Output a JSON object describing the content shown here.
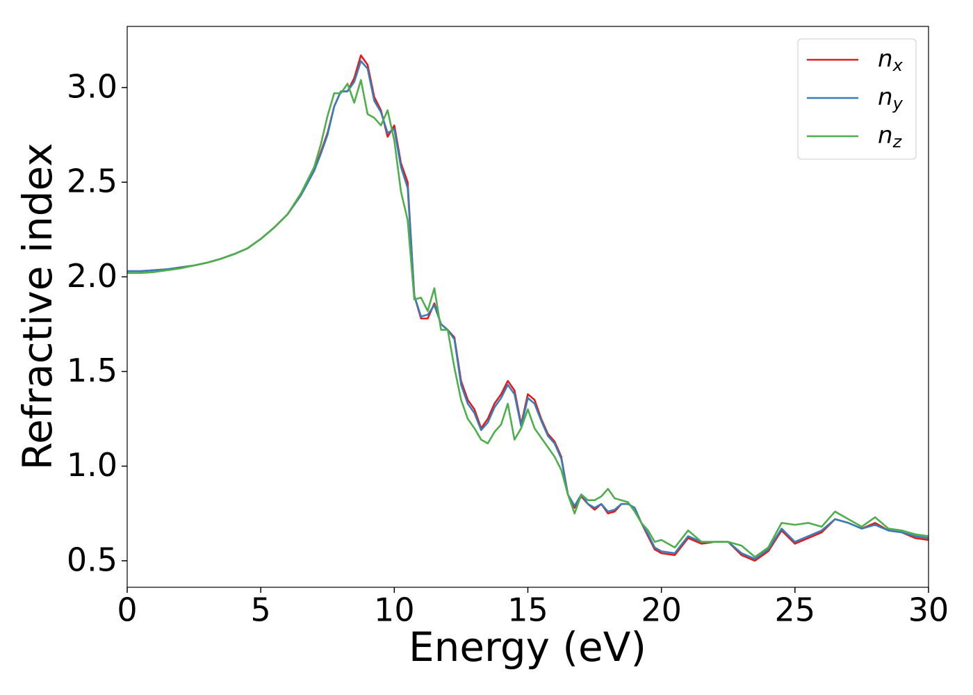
{
  "chart_data": {
    "type": "line",
    "xlabel": "Energy (eV)",
    "ylabel": "Refractive index",
    "x": [
      0,
      0.5,
      1,
      1.5,
      2,
      2.5,
      3,
      3.5,
      4,
      4.5,
      5,
      5.5,
      6,
      6.5,
      7,
      7.25,
      7.5,
      7.75,
      8,
      8.25,
      8.5,
      8.75,
      9,
      9.25,
      9.5,
      9.75,
      10,
      10.25,
      10.5,
      10.75,
      11,
      11.25,
      11.5,
      11.75,
      12,
      12.25,
      12.5,
      12.75,
      13,
      13.25,
      13.5,
      13.75,
      14,
      14.25,
      14.5,
      14.75,
      15,
      15.25,
      15.5,
      15.75,
      16,
      16.25,
      16.5,
      16.75,
      17,
      17.25,
      17.5,
      17.75,
      18,
      18.25,
      18.5,
      18.75,
      19,
      19.25,
      19.5,
      19.75,
      20,
      20.5,
      21,
      21.5,
      22,
      22.5,
      23,
      23.5,
      24,
      24.5,
      25,
      25.5,
      26,
      26.5,
      27,
      27.5,
      28,
      28.5,
      29,
      29.5,
      30
    ],
    "series": [
      {
        "name": "nx",
        "color": "#e41a1c",
        "values": [
          2.03,
          2.03,
          2.035,
          2.04,
          2.05,
          2.06,
          2.075,
          2.095,
          2.12,
          2.15,
          2.2,
          2.26,
          2.33,
          2.43,
          2.56,
          2.66,
          2.76,
          2.9,
          2.98,
          2.98,
          3.05,
          3.17,
          3.12,
          2.95,
          2.88,
          2.74,
          2.8,
          2.6,
          2.5,
          1.9,
          1.78,
          1.78,
          1.86,
          1.75,
          1.72,
          1.68,
          1.45,
          1.35,
          1.3,
          1.2,
          1.25,
          1.33,
          1.38,
          1.45,
          1.4,
          1.22,
          1.38,
          1.35,
          1.25,
          1.17,
          1.13,
          1.05,
          0.85,
          0.78,
          0.84,
          0.8,
          0.77,
          0.8,
          0.75,
          0.76,
          0.8,
          0.8,
          0.78,
          0.7,
          0.63,
          0.56,
          0.54,
          0.53,
          0.62,
          0.59,
          0.6,
          0.6,
          0.53,
          0.5,
          0.55,
          0.66,
          0.59,
          0.62,
          0.65,
          0.72,
          0.7,
          0.67,
          0.7,
          0.66,
          0.65,
          0.62,
          0.61
        ]
      },
      {
        "name": "ny",
        "color": "#377eb8",
        "values": [
          2.03,
          2.03,
          2.035,
          2.04,
          2.05,
          2.06,
          2.075,
          2.095,
          2.12,
          2.15,
          2.2,
          2.26,
          2.33,
          2.43,
          2.56,
          2.65,
          2.75,
          2.9,
          2.98,
          2.98,
          3.03,
          3.14,
          3.1,
          2.93,
          2.87,
          2.76,
          2.78,
          2.58,
          2.47,
          1.9,
          1.79,
          1.8,
          1.85,
          1.75,
          1.72,
          1.67,
          1.43,
          1.33,
          1.28,
          1.19,
          1.23,
          1.31,
          1.36,
          1.43,
          1.38,
          1.21,
          1.36,
          1.33,
          1.24,
          1.16,
          1.12,
          1.04,
          0.85,
          0.79,
          0.85,
          0.8,
          0.78,
          0.8,
          0.76,
          0.77,
          0.8,
          0.8,
          0.78,
          0.7,
          0.64,
          0.57,
          0.55,
          0.54,
          0.63,
          0.6,
          0.6,
          0.6,
          0.54,
          0.51,
          0.56,
          0.67,
          0.6,
          0.63,
          0.66,
          0.72,
          0.7,
          0.67,
          0.69,
          0.66,
          0.65,
          0.63,
          0.62
        ]
      },
      {
        "name": "nz",
        "color": "#4daf4a",
        "values": [
          2.02,
          2.02,
          2.025,
          2.035,
          2.045,
          2.06,
          2.075,
          2.095,
          2.12,
          2.15,
          2.2,
          2.26,
          2.33,
          2.44,
          2.58,
          2.7,
          2.85,
          2.97,
          2.97,
          3.02,
          2.92,
          3.04,
          2.86,
          2.84,
          2.8,
          2.88,
          2.72,
          2.45,
          2.3,
          1.88,
          1.89,
          1.82,
          1.94,
          1.72,
          1.72,
          1.52,
          1.35,
          1.25,
          1.2,
          1.14,
          1.12,
          1.18,
          1.22,
          1.33,
          1.14,
          1.2,
          1.3,
          1.2,
          1.15,
          1.1,
          1.05,
          0.98,
          0.85,
          0.75,
          0.85,
          0.82,
          0.82,
          0.84,
          0.88,
          0.83,
          0.82,
          0.81,
          0.76,
          0.7,
          0.66,
          0.6,
          0.61,
          0.57,
          0.66,
          0.6,
          0.6,
          0.6,
          0.58,
          0.52,
          0.57,
          0.7,
          0.69,
          0.7,
          0.68,
          0.76,
          0.72,
          0.68,
          0.73,
          0.67,
          0.66,
          0.64,
          0.63
        ]
      }
    ],
    "xlim": [
      0,
      30
    ],
    "xticks": [
      0,
      5,
      10,
      15,
      20,
      25,
      30
    ],
    "ylim": [
      0.36,
      3.323
    ],
    "yticks": [
      0.5,
      {
        "value": 1,
        "label": "1.0"
      },
      1.5,
      {
        "value": 2,
        "label": "2.0"
      },
      2.5,
      {
        "value": 3,
        "label": "3.0"
      }
    ],
    "grid": false,
    "legend": "upper right"
  }
}
